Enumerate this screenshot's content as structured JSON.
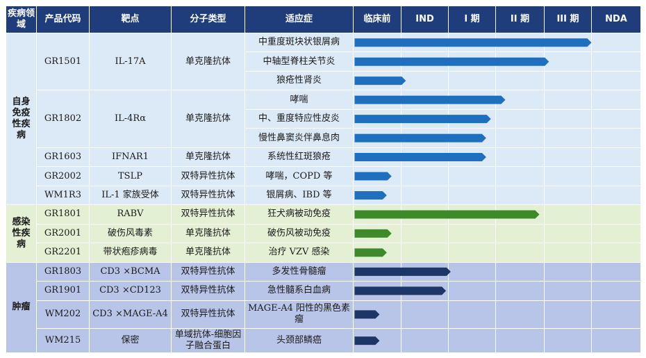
{
  "headers": [
    "疾病领域",
    "产品代码",
    "靶点",
    "分子类型",
    "适应症",
    "临床前",
    "IND",
    "I 期",
    "II 期",
    "III 期",
    "NDA"
  ],
  "groups": [
    {
      "key": "auto",
      "name": "自身免疫性疾病",
      "color": "#1f6fc0"
    },
    {
      "key": "infect",
      "name": "感染性疾病",
      "color": "#3e8a2a"
    },
    {
      "key": "tumor",
      "name": "肿瘤",
      "color": "#1c3668"
    }
  ],
  "products": [
    {
      "code": "GR1501",
      "target": "IL-17A",
      "type": "单克隆抗体",
      "indications": [
        {
          "name": "中重度斑块状银屑病",
          "progress": 5.0
        },
        {
          "name": "中轴型脊柱关节炎",
          "progress": 4.1
        },
        {
          "name": "狼疮性肾炎",
          "progress": 1.1
        }
      ]
    },
    {
      "code": "GR1802",
      "target": "IL-4Rα",
      "type": "单克隆抗体",
      "indications": [
        {
          "name": "哮喘",
          "progress": 3.2
        },
        {
          "name": "中、重度特应性皮炎",
          "progress": 2.9
        },
        {
          "name": "慢性鼻窦炎伴鼻息肉",
          "progress": 2.8
        }
      ]
    },
    {
      "code": "GR1603",
      "target": "IFNAR1",
      "type": "单克隆抗体",
      "indications": [
        {
          "name": "系统性红斑狼疮",
          "progress": 2.8
        }
      ]
    },
    {
      "code": "GR2002",
      "target": "TSLP",
      "type": "双特异性抗体",
      "indications": [
        {
          "name": "哮喘，COPD 等",
          "progress": 0.8
        }
      ]
    },
    {
      "code": "WM1R3",
      "target": "IL-1 家族受体",
      "type": "双特异性抗体",
      "indications": [
        {
          "name": "银屑病、IBD 等",
          "progress": 0.7
        }
      ]
    },
    {
      "code": "GR1801",
      "target": "RABV",
      "type": "双特异性抗体",
      "indications": [
        {
          "name": "狂犬病被动免疫",
          "progress": 3.9
        }
      ]
    },
    {
      "code": "GR2001",
      "target": "破伤风毒素",
      "type": "单克隆抗体",
      "indications": [
        {
          "name": "破伤风被动免疫",
          "progress": 0.8
        }
      ]
    },
    {
      "code": "GR2201",
      "target": "带状疱疹病毒",
      "type": "单克隆抗体",
      "indications": [
        {
          "name": "治疗 VZV 感染",
          "progress": 0.7
        }
      ]
    },
    {
      "code": "GR1803",
      "target": "CD3 ×BCMA",
      "type": "双特异性抗体",
      "indications": [
        {
          "name": "多发性骨髓瘤",
          "progress": 2.05
        }
      ]
    },
    {
      "code": "GR1901",
      "target": "CD3 ×CD123",
      "type": "双特异性抗体",
      "indications": [
        {
          "name": "急性髓系白血病",
          "progress": 1.95
        }
      ]
    },
    {
      "code": "WM202",
      "target": "CD3 ×MAGE-A4",
      "type": "双特异性抗体",
      "indications": [
        {
          "name": "MAGE-A4 阳性的黑色素瘤",
          "progress": 0.55
        }
      ]
    },
    {
      "code": "WM215",
      "target": "保密",
      "type": "单域抗体-细胞因子融合蛋白",
      "indications": [
        {
          "name": "头颈部鳞癌",
          "progress": 0.55
        }
      ]
    }
  ]
}
